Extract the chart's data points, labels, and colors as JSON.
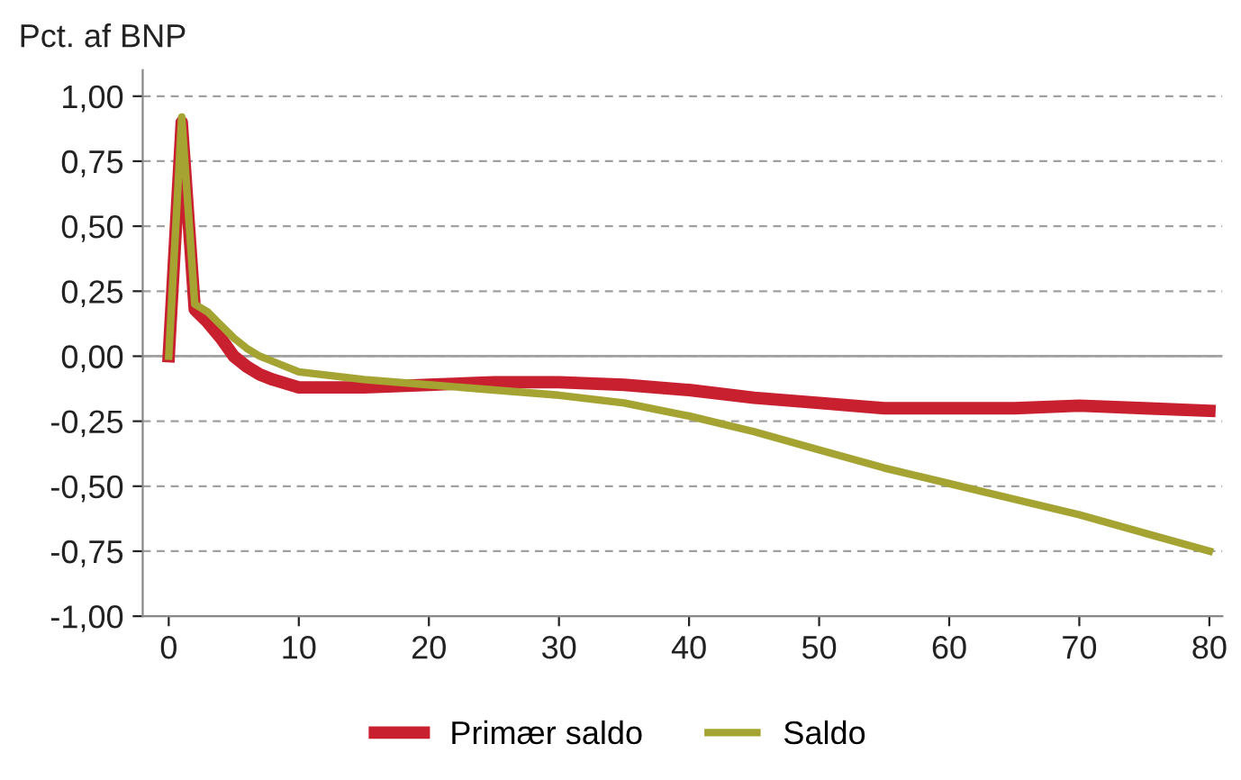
{
  "chart_data": {
    "type": "line",
    "ylabel": "Pct. af BNP",
    "x": [
      0,
      1,
      2,
      3,
      4,
      5,
      6,
      7,
      8,
      10,
      15,
      20,
      25,
      30,
      35,
      40,
      45,
      50,
      55,
      60,
      65,
      70,
      75,
      80
    ],
    "series": [
      {
        "name": "Primær saldo",
        "color": "#c8202f",
        "values": [
          0,
          0.9,
          0.18,
          0.13,
          0.07,
          0.0,
          -0.04,
          -0.07,
          -0.09,
          -0.12,
          -0.12,
          -0.11,
          -0.1,
          -0.1,
          -0.11,
          -0.13,
          -0.16,
          -0.18,
          -0.2,
          -0.2,
          -0.2,
          -0.19,
          -0.2,
          -0.21
        ]
      },
      {
        "name": "Saldo",
        "color": "#a5a332",
        "values": [
          0,
          0.92,
          0.2,
          0.17,
          0.12,
          0.07,
          0.03,
          0.0,
          -0.02,
          -0.06,
          -0.09,
          -0.11,
          -0.13,
          -0.15,
          -0.18,
          -0.23,
          -0.29,
          -0.36,
          -0.43,
          -0.49,
          -0.55,
          -0.61,
          -0.68,
          -0.75
        ]
      }
    ],
    "xlim": [
      -2,
      81
    ],
    "xticks": [
      0,
      10,
      20,
      30,
      40,
      50,
      60,
      70,
      80
    ],
    "ylim": [
      -1,
      1.1
    ],
    "yticks": [
      {
        "value": -1,
        "label": "-1,00"
      },
      {
        "value": -0.75,
        "label": "-0,75"
      },
      {
        "value": -0.5,
        "label": "-0,50"
      },
      {
        "value": -0.25,
        "label": "-0,25"
      },
      {
        "value": 0,
        "label": "0,00"
      },
      {
        "value": 0.25,
        "label": "0,25"
      },
      {
        "value": 0.5,
        "label": "0,50"
      },
      {
        "value": 0.75,
        "label": "0,75"
      },
      {
        "value": 1,
        "label": "1,00"
      }
    ],
    "ref_lines": [
      {
        "axis": "y",
        "value": 0,
        "color": "#a0a0a0",
        "line_style": "solid"
      }
    ],
    "grid": "y",
    "legend": "bottom",
    "line_style": "solid",
    "marker": "none"
  }
}
